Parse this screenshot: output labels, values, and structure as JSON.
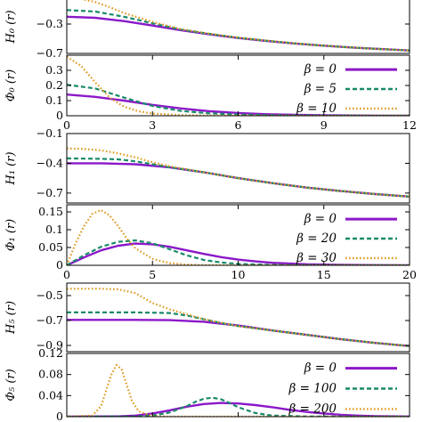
{
  "chart_data": [
    {
      "type": "line",
      "ylabel": "H₀ (r)",
      "xlim": [
        0,
        12
      ],
      "ylim": [
        -0.7,
        0.1
      ],
      "yticks": [
        "−0.3",
        "−0.7"
      ],
      "xticks": [],
      "series": [
        {
          "color": "#8b18c8",
          "dash": "solid",
          "x": [
            0,
            1,
            2,
            3,
            4,
            5,
            6,
            7,
            8,
            9,
            10,
            11,
            12
          ],
          "y": [
            -0.2,
            -0.215,
            -0.26,
            -0.32,
            -0.385,
            -0.44,
            -0.49,
            -0.53,
            -0.565,
            -0.595,
            -0.62,
            -0.64,
            -0.66
          ]
        },
        {
          "color": "#1a8a6a",
          "dash": "dashed",
          "x": [
            0,
            1,
            2,
            3,
            4,
            5,
            6,
            7,
            8,
            9,
            10,
            11,
            12
          ],
          "y": [
            -0.11,
            -0.13,
            -0.2,
            -0.29,
            -0.375,
            -0.435,
            -0.487,
            -0.528,
            -0.564,
            -0.594,
            -0.62,
            -0.64,
            -0.66
          ]
        },
        {
          "color": "#e09a20",
          "dash": "dotted",
          "x": [
            0,
            0.5,
            1,
            1.5,
            2,
            3,
            4,
            5,
            6,
            7,
            8,
            9,
            10,
            11,
            12
          ],
          "y": [
            0.05,
            0.04,
            0.0,
            -0.07,
            -0.15,
            -0.27,
            -0.37,
            -0.432,
            -0.485,
            -0.527,
            -0.563,
            -0.594,
            -0.62,
            -0.64,
            -0.66
          ]
        }
      ]
    },
    {
      "type": "line",
      "ylabel": "Φ₀ (r)",
      "xlim": [
        0,
        12
      ],
      "ylim": [
        0,
        0.4
      ],
      "yticks": [
        "0",
        "0.1",
        "0.2",
        "0.3"
      ],
      "xticks": [
        "0",
        "3",
        "6",
        "9",
        "12"
      ],
      "legend": [
        "β =  0",
        "β =  5",
        "β = 10"
      ],
      "series": [
        {
          "name": "β =  0",
          "color": "#8b18c8",
          "dash": "solid",
          "x": [
            0,
            1,
            2,
            3,
            4,
            5,
            6,
            7,
            8,
            9,
            10,
            11,
            12
          ],
          "y": [
            0.14,
            0.125,
            0.1,
            0.072,
            0.048,
            0.03,
            0.018,
            0.01,
            0.006,
            0.003,
            0.0015,
            0.0008,
            0.0004
          ]
        },
        {
          "name": "β =  5",
          "color": "#1a8a6a",
          "dash": "dashed",
          "x": [
            0,
            1,
            2,
            3,
            4,
            5,
            6,
            7,
            8,
            9,
            10,
            11,
            12
          ],
          "y": [
            0.205,
            0.18,
            0.12,
            0.065,
            0.032,
            0.016,
            0.008,
            0.004,
            0.002,
            0.001,
            0.0005,
            0.0002,
            0.0001
          ]
        },
        {
          "name": "β = 10",
          "color": "#e09a20",
          "dash": "dotted",
          "x": [
            0,
            0.5,
            1,
            1.5,
            2,
            2.5,
            3,
            4,
            5,
            6,
            8,
            12
          ],
          "y": [
            0.39,
            0.33,
            0.22,
            0.12,
            0.06,
            0.03,
            0.014,
            0.004,
            0.001,
            0.0003,
            0,
            0
          ]
        }
      ]
    },
    {
      "type": "line",
      "ylabel": "H₁ (r)",
      "xlim": [
        0,
        20
      ],
      "ylim": [
        -0.8,
        -0.1
      ],
      "yticks": [
        "−0.1",
        "−0.4",
        "−0.7"
      ],
      "xticks": [],
      "series": [
        {
          "color": "#8b18c8",
          "dash": "solid",
          "x": [
            0,
            2,
            4,
            6,
            8,
            10,
            12,
            14,
            16,
            18,
            20
          ],
          "y": [
            -0.4,
            -0.4,
            -0.41,
            -0.44,
            -0.49,
            -0.55,
            -0.6,
            -0.645,
            -0.68,
            -0.71,
            -0.735
          ]
        },
        {
          "color": "#1a8a6a",
          "dash": "dashed",
          "x": [
            0,
            2,
            3,
            4,
            5,
            6,
            8,
            10,
            12,
            14,
            16,
            18,
            20
          ],
          "y": [
            -0.35,
            -0.355,
            -0.36,
            -0.38,
            -0.41,
            -0.44,
            -0.49,
            -0.55,
            -0.6,
            -0.645,
            -0.68,
            -0.71,
            -0.735
          ]
        },
        {
          "color": "#e09a20",
          "dash": "dotted",
          "x": [
            0,
            1,
            2,
            3,
            4,
            5,
            6,
            8,
            10,
            12,
            14,
            16,
            18,
            20
          ],
          "y": [
            -0.25,
            -0.255,
            -0.27,
            -0.3,
            -0.34,
            -0.39,
            -0.43,
            -0.49,
            -0.55,
            -0.6,
            -0.645,
            -0.68,
            -0.71,
            -0.735
          ]
        }
      ]
    },
    {
      "type": "line",
      "ylabel": "Φ₁ (r)",
      "xlim": [
        0,
        20
      ],
      "ylim": [
        0,
        0.17
      ],
      "yticks": [
        "0",
        "0.05",
        "0.1",
        "0.15"
      ],
      "xticks": [
        "0",
        "5",
        "10",
        "15",
        "20"
      ],
      "legend": [
        "β =  0",
        "β = 20",
        "β = 30"
      ],
      "series": [
        {
          "name": "β =  0",
          "color": "#8b18c8",
          "dash": "solid",
          "x": [
            0,
            1,
            2,
            3,
            4,
            5,
            6,
            7,
            8,
            9,
            10,
            11,
            12,
            14,
            16,
            18,
            20
          ],
          "y": [
            0,
            0.022,
            0.042,
            0.055,
            0.061,
            0.059,
            0.052,
            0.042,
            0.032,
            0.023,
            0.016,
            0.011,
            0.007,
            0.003,
            0.0012,
            0.0005,
            0.0002
          ]
        },
        {
          "name": "β = 20",
          "color": "#1a8a6a",
          "dash": "dashed",
          "x": [
            0,
            1,
            2,
            3,
            4,
            5,
            6,
            7,
            8,
            9,
            10,
            12,
            14,
            20
          ],
          "y": [
            0,
            0.028,
            0.052,
            0.066,
            0.07,
            0.062,
            0.045,
            0.028,
            0.015,
            0.008,
            0.004,
            0.001,
            0.0003,
            0
          ]
        },
        {
          "name": "β = 30",
          "color": "#e09a20",
          "dash": "dotted",
          "x": [
            0,
            0.5,
            1,
            1.5,
            2,
            2.5,
            3,
            3.5,
            4,
            5,
            6,
            7,
            8,
            10,
            20
          ],
          "y": [
            0,
            0.06,
            0.11,
            0.145,
            0.155,
            0.14,
            0.11,
            0.075,
            0.048,
            0.018,
            0.006,
            0.002,
            0.0006,
            0,
            0
          ]
        }
      ]
    },
    {
      "type": "line",
      "ylabel": "H₅ (r)",
      "xlim": [
        0,
        20
      ],
      "ylim": [
        -0.95,
        -0.4
      ],
      "yticks": [
        "−0.5",
        "−0.7",
        "−0.9"
      ],
      "xticks": [],
      "series": [
        {
          "color": "#8b18c8",
          "dash": "solid",
          "x": [
            0,
            2,
            4,
            6,
            8,
            10,
            12,
            14,
            16,
            18,
            20
          ],
          "y": [
            -0.695,
            -0.695,
            -0.695,
            -0.697,
            -0.71,
            -0.74,
            -0.78,
            -0.815,
            -0.85,
            -0.88,
            -0.905
          ]
        },
        {
          "color": "#1a8a6a",
          "dash": "dashed",
          "x": [
            0,
            2,
            4,
            6,
            7,
            8,
            9,
            10,
            12,
            14,
            16,
            18,
            20
          ],
          "y": [
            -0.635,
            -0.635,
            -0.635,
            -0.64,
            -0.66,
            -0.69,
            -0.72,
            -0.745,
            -0.78,
            -0.815,
            -0.85,
            -0.88,
            -0.905
          ]
        },
        {
          "color": "#e09a20",
          "dash": "dotted",
          "x": [
            0,
            1,
            2,
            3,
            4,
            4.5,
            5,
            6,
            7,
            8,
            10,
            12,
            14,
            16,
            18,
            20
          ],
          "y": [
            -0.445,
            -0.445,
            -0.445,
            -0.45,
            -0.48,
            -0.52,
            -0.56,
            -0.61,
            -0.65,
            -0.69,
            -0.745,
            -0.78,
            -0.815,
            -0.85,
            -0.88,
            -0.905
          ]
        }
      ]
    },
    {
      "type": "line",
      "ylabel": "Φ₅ (r)",
      "xlim": [
        0,
        20
      ],
      "ylim": [
        0,
        0.12
      ],
      "yticks": [
        "0",
        "0.04",
        "0.08",
        "0.12"
      ],
      "xticks": [],
      "legend": [
        "β =    0",
        "β = 100",
        "β = 200"
      ],
      "series": [
        {
          "name": "β =    0",
          "color": "#8b18c8",
          "dash": "solid",
          "x": [
            0,
            3,
            4,
            5,
            6,
            7,
            8,
            9,
            10,
            11,
            12,
            13,
            14,
            15,
            16,
            17,
            18,
            20
          ],
          "y": [
            0,
            0.0005,
            0.002,
            0.006,
            0.012,
            0.019,
            0.024,
            0.026,
            0.025,
            0.022,
            0.018,
            0.013,
            0.009,
            0.006,
            0.0035,
            0.002,
            0.001,
            0.0003
          ]
        },
        {
          "name": "β = 100",
          "color": "#1a8a6a",
          "dash": "dashed",
          "x": [
            0,
            4,
            5,
            6,
            7,
            7.5,
            8,
            8.5,
            9,
            9.5,
            10,
            11,
            12,
            14,
            20
          ],
          "y": [
            0,
            0.0003,
            0.002,
            0.008,
            0.02,
            0.028,
            0.034,
            0.036,
            0.033,
            0.026,
            0.018,
            0.007,
            0.002,
            0.0003,
            0
          ]
        },
        {
          "name": "β = 200",
          "color": "#e09a20",
          "dash": "dotted",
          "x": [
            0,
            1.5,
            2,
            2.3,
            2.6,
            2.9,
            3.2,
            3.5,
            3.8,
            4.2,
            5,
            6,
            20
          ],
          "y": [
            0,
            0.002,
            0.02,
            0.05,
            0.08,
            0.098,
            0.09,
            0.06,
            0.03,
            0.01,
            0.001,
            0,
            0
          ]
        }
      ]
    }
  ]
}
